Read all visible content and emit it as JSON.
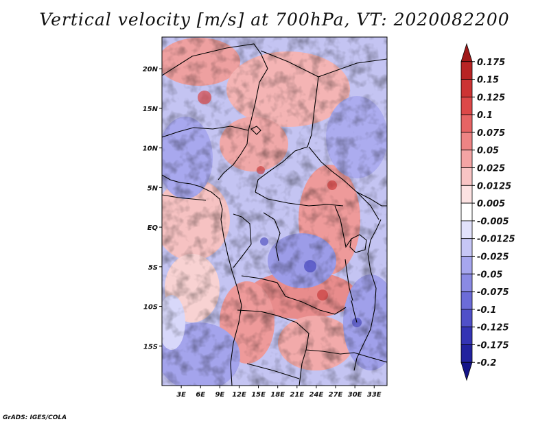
{
  "title": "Vertical velocity [m/s] at 700hPa, VT: 2020082200",
  "credit": "GrADS: IGES/COLA",
  "map": {
    "lon_range": [
      0,
      35
    ],
    "lat_range": [
      -20,
      24
    ],
    "lon_ticks": [
      {
        "value": 3,
        "label": "3E"
      },
      {
        "value": 6,
        "label": "6E"
      },
      {
        "value": 9,
        "label": "9E"
      },
      {
        "value": 12,
        "label": "12E"
      },
      {
        "value": 15,
        "label": "15E"
      },
      {
        "value": 18,
        "label": "18E"
      },
      {
        "value": 21,
        "label": "21E"
      },
      {
        "value": 24,
        "label": "24E"
      },
      {
        "value": 27,
        "label": "27E"
      },
      {
        "value": 30,
        "label": "30E"
      },
      {
        "value": 33,
        "label": "33E"
      }
    ],
    "lat_ticks": [
      {
        "value": 20,
        "label": "20N"
      },
      {
        "value": 15,
        "label": "15N"
      },
      {
        "value": 10,
        "label": "10N"
      },
      {
        "value": 5,
        "label": "5N"
      },
      {
        "value": 0,
        "label": "EQ"
      },
      {
        "value": -5,
        "label": "5S"
      },
      {
        "value": -10,
        "label": "10S"
      },
      {
        "value": -15,
        "label": "15S"
      }
    ]
  },
  "colorbar": {
    "labels": [
      "0.175",
      "0.15",
      "0.125",
      "0.1",
      "0.075",
      "0.05",
      "0.025",
      "0.0125",
      "0.005",
      "-0.005",
      "-0.0125",
      "-0.025",
      "-0.05",
      "-0.075",
      "-0.1",
      "-0.125",
      "-0.175",
      "-0.2"
    ],
    "colors": [
      "#a01818",
      "#b82424",
      "#cc3434",
      "#dc4848",
      "#e66464",
      "#ee8484",
      "#f4a4a4",
      "#f8c4c4",
      "#fce2e2",
      "#ffffff",
      "#e2e2fc",
      "#c6c6f6",
      "#a6a6ee",
      "#8a8ae4",
      "#6c6cd8",
      "#5050c8",
      "#3434b4",
      "#22229e",
      "#141488"
    ]
  }
}
